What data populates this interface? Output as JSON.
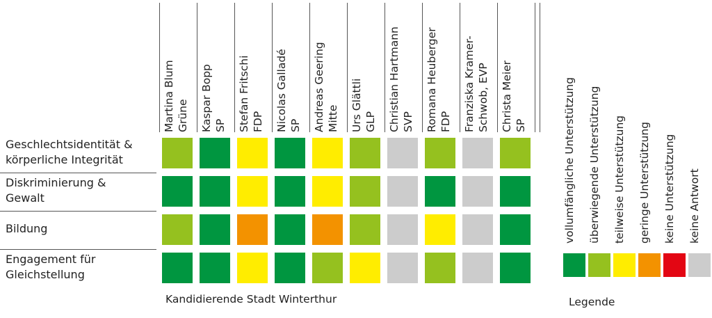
{
  "chart_data": {
    "type": "heatmap",
    "title": "",
    "xlabel": "Kandidierende Stadt Winterthur",
    "legend_title": "Legende",
    "legend_placement": "right",
    "legend": [
      {
        "label": "vollumfängliche Unterstützung",
        "color": "#009640"
      },
      {
        "label": "überwiegende Unterstützung",
        "color": "#95C11F"
      },
      {
        "label": "teilweise Unterstützung",
        "color": "#FFED00"
      },
      {
        "label": "geringe Unterstützung",
        "color": "#F39200"
      },
      {
        "label": "keine Unterstützung",
        "color": "#E30613"
      },
      {
        "label": "keine Antwort",
        "color": "#CCCCCC"
      }
    ],
    "candidates": [
      {
        "line1": "Martina Blum",
        "line2": "Grüne"
      },
      {
        "line1": "Kaspar Bopp",
        "line2": "SP"
      },
      {
        "line1": "Stefan Fritschi",
        "line2": "FDP"
      },
      {
        "line1": "Nicolas Galladé",
        "line2": "SP"
      },
      {
        "line1": "Andreas Geering",
        "line2": "Mitte"
      },
      {
        "line1": "Urs Glättli",
        "line2": "GLP"
      },
      {
        "line1": "Christian Hartmann",
        "line2": "SVP"
      },
      {
        "line1": "Romana Heuberger",
        "line2": "FDP"
      },
      {
        "line1": "Franziska Kramer-",
        "line2": "Schwob, EVP"
      },
      {
        "line1": "Christa Meier",
        "line2": "SP"
      }
    ],
    "topics": [
      {
        "line1": "Geschlechtsidentität &",
        "line2": "körperliche Integrität",
        "values": [
          1,
          0,
          2,
          0,
          2,
          1,
          5,
          1,
          5,
          1
        ]
      },
      {
        "line1": "Diskriminierung &",
        "line2": "Gewalt",
        "values": [
          0,
          0,
          2,
          0,
          2,
          1,
          5,
          0,
          5,
          0
        ]
      },
      {
        "line1": "Bildung",
        "line2": "",
        "values": [
          1,
          0,
          3,
          0,
          3,
          1,
          5,
          2,
          5,
          0
        ]
      },
      {
        "line1": "Engagement für",
        "line2": "Gleichstellung",
        "values": [
          0,
          0,
          2,
          0,
          1,
          2,
          5,
          1,
          5,
          0
        ]
      }
    ]
  }
}
